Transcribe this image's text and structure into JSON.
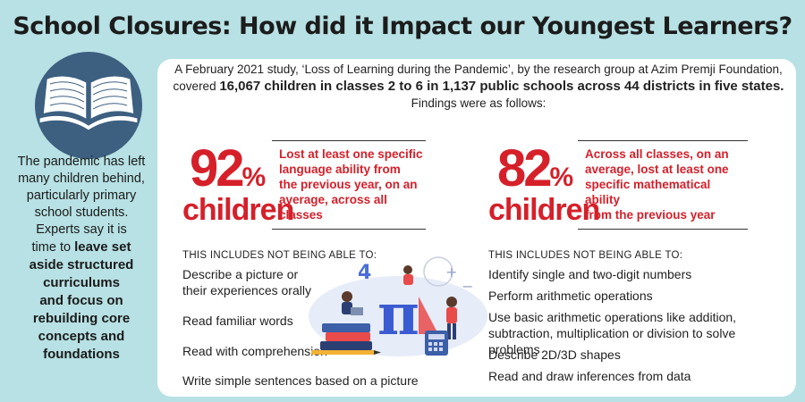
{
  "title": "School Closures: How did it Impact our Youngest Learners?",
  "sidebar": {
    "text_lines": [
      "The pandemic has left",
      "many children behind,",
      "particularly primary",
      "school students.",
      "Experts say it is",
      "time to "
    ],
    "bold_lines": [
      "leave set",
      "aside structured",
      "curriculums",
      "and focus on",
      "rebuilding core",
      "concepts and",
      "foundations"
    ]
  },
  "intro": {
    "line1": "A February 2021 study, ‘Loss of Learning during the Pandemic’, by the research group at Azim Premji Foundation,",
    "line2_pre": "covered ",
    "line2_bold": "16,067 children in classes 2 to 6 in 1,137 public schools across 44 districts in five states.",
    "line3": "Findings were as follows:"
  },
  "stats": [
    {
      "number": "92",
      "sign": "%",
      "noun": "children",
      "desc_lines": [
        "Lost at least one specific",
        "language ability from",
        "the previous year, on an",
        "average, across all classes"
      ],
      "includes_heading": "THIS INCLUDES NOT BEING ABLE TO:",
      "items": [
        "Describe a picture or their experiences orally",
        "Read familiar words",
        "Read with comprehension",
        "Write simple sentences based on a picture"
      ]
    },
    {
      "number": "82",
      "sign": "%",
      "noun": "children",
      "desc_lines": [
        "Across all classes, on an",
        "average, lost at least one",
        "specific mathematical ability",
        "from the previous year"
      ],
      "includes_heading": "THIS INCLUDES NOT BEING ABLE TO:",
      "items": [
        "Identify single and two-digit numbers",
        "Perform arithmetic operations",
        "Use basic arithmetic operations like addition, subtraction, multiplication or division to solve problems",
        "Describe 2D/3D shapes",
        "Read and draw inferences from data"
      ]
    }
  ],
  "colors": {
    "background": "#b7e1e4",
    "accent_red": "#d5202a",
    "book_circle": "#3d5f80"
  }
}
